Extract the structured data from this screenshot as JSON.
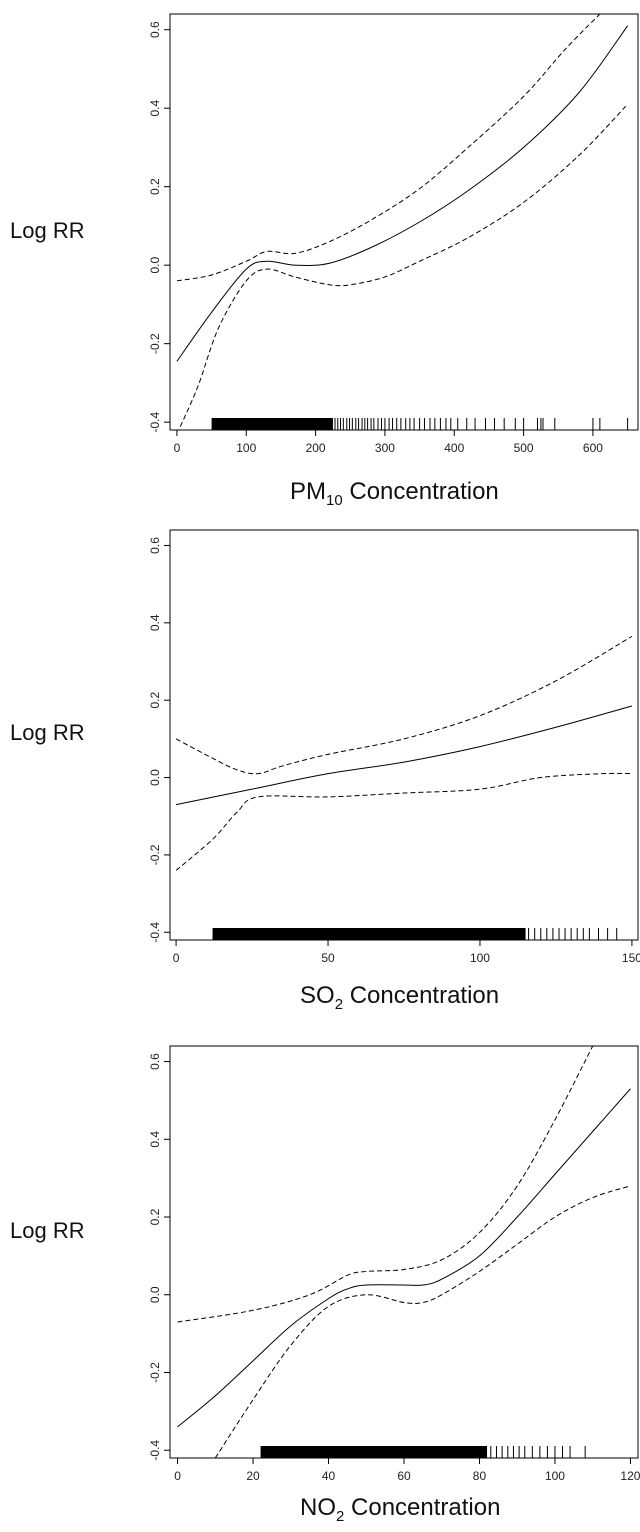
{
  "chart_data": [
    {
      "type": "line",
      "ylabel": "Log RR",
      "xlabel_main": "PM",
      "xlabel_sub": "10",
      "xlabel_rest": " Concentration",
      "xlim": [
        -10,
        665
      ],
      "ylim": [
        -0.42,
        0.64
      ],
      "xticks": [
        0,
        100,
        200,
        300,
        400,
        500,
        600
      ],
      "yticks": [
        -0.4,
        -0.2,
        0.0,
        0.2,
        0.4,
        0.6
      ],
      "series": [
        {
          "style": "solid",
          "x": [
            0,
            50,
            100,
            130,
            170,
            220,
            280,
            350,
            420,
            500,
            580,
            650
          ],
          "y": [
            -0.245,
            -0.12,
            -0.01,
            0.01,
            0.0,
            0.005,
            0.045,
            0.11,
            0.19,
            0.3,
            0.44,
            0.61
          ]
        },
        {
          "style": "dashed",
          "x": [
            0,
            50,
            100,
            130,
            170,
            220,
            280,
            350,
            420,
            500,
            560,
            610
          ],
          "y": [
            -0.04,
            -0.025,
            0.01,
            0.035,
            0.03,
            0.06,
            0.115,
            0.195,
            0.3,
            0.43,
            0.55,
            0.64
          ]
        },
        {
          "style": "dashed",
          "x": [
            0,
            30,
            60,
            100,
            130,
            170,
            220,
            250,
            300,
            350,
            420,
            500,
            580,
            650
          ],
          "y": [
            -0.43,
            -0.31,
            -0.16,
            -0.04,
            -0.01,
            -0.03,
            -0.05,
            -0.05,
            -0.03,
            0.01,
            0.07,
            0.16,
            0.28,
            0.41
          ]
        }
      ],
      "rug": {
        "dense": [
          50,
          225
        ],
        "sparse": [
          228,
          232,
          236,
          240,
          245,
          249,
          253,
          258,
          262,
          267,
          271,
          275,
          280,
          284,
          290,
          295,
          300,
          306,
          311,
          317,
          323,
          330,
          336,
          342,
          350,
          357,
          365,
          372,
          380,
          388,
          395,
          405,
          418,
          430,
          445,
          458,
          472,
          488,
          500,
          520,
          525,
          528,
          545,
          600,
          610,
          650
        ]
      }
    },
    {
      "type": "line",
      "ylabel": "Log RR",
      "xlabel_main": "SO",
      "xlabel_sub": "2",
      "xlabel_rest": " Concentration",
      "xlim": [
        -2,
        152
      ],
      "ylim": [
        -0.42,
        0.64
      ],
      "xticks": [
        0,
        50,
        100,
        150
      ],
      "yticks": [
        -0.4,
        -0.2,
        0.0,
        0.2,
        0.4,
        0.6
      ],
      "series": [
        {
          "style": "solid",
          "x": [
            0,
            25,
            50,
            75,
            100,
            125,
            150
          ],
          "y": [
            -0.07,
            -0.03,
            0.01,
            0.04,
            0.08,
            0.13,
            0.185
          ]
        },
        {
          "style": "dashed",
          "x": [
            0,
            12,
            20,
            27,
            35,
            50,
            75,
            100,
            125,
            150
          ],
          "y": [
            0.1,
            0.05,
            0.02,
            0.01,
            0.03,
            0.06,
            0.1,
            0.16,
            0.25,
            0.365
          ]
        },
        {
          "style": "dashed",
          "x": [
            0,
            12,
            20,
            27,
            50,
            75,
            100,
            120,
            140,
            150
          ],
          "y": [
            -0.24,
            -0.16,
            -0.09,
            -0.05,
            -0.05,
            -0.04,
            -0.03,
            0.0,
            0.01,
            0.01
          ]
        }
      ],
      "rug": {
        "dense": [
          12,
          115
        ],
        "sparse": [
          116,
          118,
          120,
          122,
          124,
          126,
          128,
          130,
          132,
          134,
          136,
          139,
          142,
          145
        ]
      }
    },
    {
      "type": "line",
      "ylabel": "Log RR",
      "xlabel_main": "NO",
      "xlabel_sub": "2",
      "xlabel_rest": " Concentration",
      "xlim": [
        -2,
        122
      ],
      "ylim": [
        -0.42,
        0.64
      ],
      "xticks": [
        0,
        20,
        40,
        60,
        80,
        100,
        120
      ],
      "yticks": [
        -0.4,
        -0.2,
        0.0,
        0.2,
        0.4,
        0.6
      ],
      "series": [
        {
          "style": "solid",
          "x": [
            0,
            10,
            20,
            30,
            40,
            45,
            50,
            60,
            65,
            70,
            80,
            90,
            100,
            110,
            120
          ],
          "y": [
            -0.34,
            -0.26,
            -0.17,
            -0.08,
            -0.01,
            0.015,
            0.025,
            0.025,
            0.025,
            0.04,
            0.1,
            0.2,
            0.31,
            0.42,
            0.53
          ]
        },
        {
          "style": "dashed",
          "x": [
            0,
            20,
            35,
            45,
            50,
            60,
            70,
            80,
            90,
            100,
            110
          ],
          "y": [
            -0.07,
            -0.04,
            0.0,
            0.05,
            0.06,
            0.065,
            0.09,
            0.16,
            0.28,
            0.45,
            0.64
          ]
        },
        {
          "style": "dashed",
          "x": [
            10,
            20,
            30,
            40,
            50,
            60,
            65,
            70,
            80,
            90,
            100,
            110,
            120
          ],
          "y": [
            -0.42,
            -0.27,
            -0.13,
            -0.03,
            0.0,
            -0.02,
            -0.02,
            0.0,
            0.06,
            0.13,
            0.2,
            0.25,
            0.28
          ]
        }
      ],
      "rug": {
        "dense": [
          22,
          82
        ],
        "sparse": [
          83,
          84.5,
          86,
          87.5,
          89,
          90.5,
          92,
          94,
          96,
          98,
          100,
          102,
          104,
          108
        ]
      }
    }
  ]
}
